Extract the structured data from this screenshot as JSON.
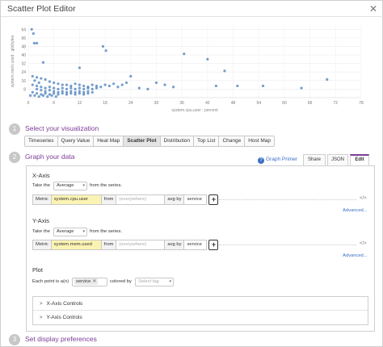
{
  "window": {
    "title": "Scatter Plot Editor",
    "close_glyph": "✕"
  },
  "chart_data": {
    "type": "scatter",
    "xlabel": "system.cpu.user : percent",
    "ylabel": "system.mem.used : gibibytes",
    "xlim": [
      0,
      78
    ],
    "ylim": [
      0,
      68
    ],
    "x_ticks": [
      "0",
      "6",
      "12",
      "18",
      "24",
      "30",
      "36",
      "42",
      "48",
      "54",
      "60",
      "66",
      "72",
      "78"
    ],
    "y_ticks": [
      "8",
      "16",
      "24",
      "32",
      "40",
      "48",
      "56",
      "64"
    ],
    "grid": true,
    "point_color": "#3b75b8",
    "points": [
      [
        0.8,
        64
      ],
      [
        1.2,
        60
      ],
      [
        2.0,
        51
      ],
      [
        1.4,
        51
      ],
      [
        17.5,
        48
      ],
      [
        18.2,
        44
      ],
      [
        36.5,
        41
      ],
      [
        42,
        36
      ],
      [
        3.5,
        33
      ],
      [
        12,
        28
      ],
      [
        24,
        20
      ],
      [
        46,
        25
      ],
      [
        64,
        9
      ],
      [
        70,
        17
      ],
      [
        44,
        11
      ],
      [
        49,
        11
      ],
      [
        55,
        11
      ],
      [
        30,
        14
      ],
      [
        1,
        20
      ],
      [
        2,
        19
      ],
      [
        3,
        18
      ],
      [
        1.5,
        16
      ],
      [
        4,
        17
      ],
      [
        5,
        15
      ],
      [
        2.5,
        14
      ],
      [
        6,
        14
      ],
      [
        7,
        13
      ],
      [
        8,
        12
      ],
      [
        9,
        12
      ],
      [
        10,
        11
      ],
      [
        11,
        13
      ],
      [
        12,
        12
      ],
      [
        13,
        11
      ],
      [
        14,
        10
      ],
      [
        15,
        12
      ],
      [
        16,
        11
      ],
      [
        17,
        10
      ],
      [
        18,
        12
      ],
      [
        19,
        11
      ],
      [
        20,
        13
      ],
      [
        21,
        10
      ],
      [
        22,
        12
      ],
      [
        23,
        14
      ],
      [
        1,
        12
      ],
      [
        2,
        11
      ],
      [
        3,
        10
      ],
      [
        4,
        9
      ],
      [
        5,
        10
      ],
      [
        6,
        9
      ],
      [
        7,
        8
      ],
      [
        8,
        9
      ],
      [
        9,
        8
      ],
      [
        10,
        9
      ],
      [
        11,
        8
      ],
      [
        12,
        9
      ],
      [
        13,
        8
      ],
      [
        14,
        9
      ],
      [
        15,
        8
      ],
      [
        16,
        9
      ],
      [
        2,
        8
      ],
      [
        3,
        7
      ],
      [
        4,
        6
      ],
      [
        5,
        7
      ],
      [
        6,
        6
      ],
      [
        7,
        5
      ],
      [
        8,
        6
      ],
      [
        9,
        5
      ],
      [
        10,
        6
      ],
      [
        11,
        5
      ],
      [
        12,
        6
      ],
      [
        13,
        5
      ],
      [
        14,
        6
      ],
      [
        15,
        5
      ],
      [
        1,
        5
      ],
      [
        2,
        4
      ],
      [
        3,
        3
      ],
      [
        4,
        4
      ],
      [
        5,
        3
      ],
      [
        6,
        4
      ],
      [
        7,
        3
      ],
      [
        8,
        4
      ],
      [
        9,
        3
      ],
      [
        10,
        4
      ],
      [
        11,
        3
      ],
      [
        12,
        4
      ],
      [
        13,
        3
      ],
      [
        14,
        4
      ],
      [
        0.5,
        2
      ],
      [
        1.5,
        2
      ],
      [
        2.5,
        1
      ],
      [
        3.5,
        2
      ],
      [
        4.5,
        1
      ],
      [
        5.5,
        2
      ],
      [
        6.5,
        1
      ],
      [
        26,
        9
      ],
      [
        28,
        8
      ],
      [
        32,
        12
      ],
      [
        34,
        10
      ]
    ]
  },
  "steps": [
    {
      "number": "1",
      "label": "Select your visualization"
    },
    {
      "number": "2",
      "label": "Graph your data"
    },
    {
      "number": "3",
      "label": "Set display preferences"
    }
  ],
  "viz_tabs": [
    "Timeseries",
    "Query Value",
    "Heat Map",
    "Scatter Plot",
    "Distribution",
    "Top List",
    "Change",
    "Host Map"
  ],
  "active_viz_tab": "Scatter Plot",
  "graph_primer": {
    "icon": "?",
    "label": "Graph Primer"
  },
  "view_tabs": [
    "Share",
    "JSON",
    "Edit"
  ],
  "x_axis": {
    "title": "X-Axis",
    "take_the": "Take the",
    "agg": "Average",
    "from_series": "from the series.",
    "metric_label": "Metric",
    "metric": "system.cpu.user",
    "from": "from",
    "scope_placeholder": "(everywhere)",
    "avg_by": "avg by",
    "group": "service",
    "plus": "+",
    "advanced": "Advanced..."
  },
  "y_axis": {
    "title": "Y-Axis",
    "take_the": "Take the",
    "agg": "Average",
    "from_series": "from the series.",
    "metric_label": "Metric",
    "metric": "system.mem.used",
    "from": "from",
    "scope_placeholder": "(everywhere)",
    "avg_by": "avg by",
    "group": "service",
    "plus": "+",
    "advanced": "Advanced..."
  },
  "plot": {
    "title": "Plot",
    "each_point": "Each point is a(n)",
    "tag": "service",
    "remove": "✕",
    "colored_by": "colored by",
    "color_placeholder": "Select tag"
  },
  "controls": [
    {
      "chev": ">",
      "label": "X-Axis Controls"
    },
    {
      "chev": ">",
      "label": "Y-Axis Controls"
    }
  ],
  "code_icon": "</>",
  "caret": "▾"
}
